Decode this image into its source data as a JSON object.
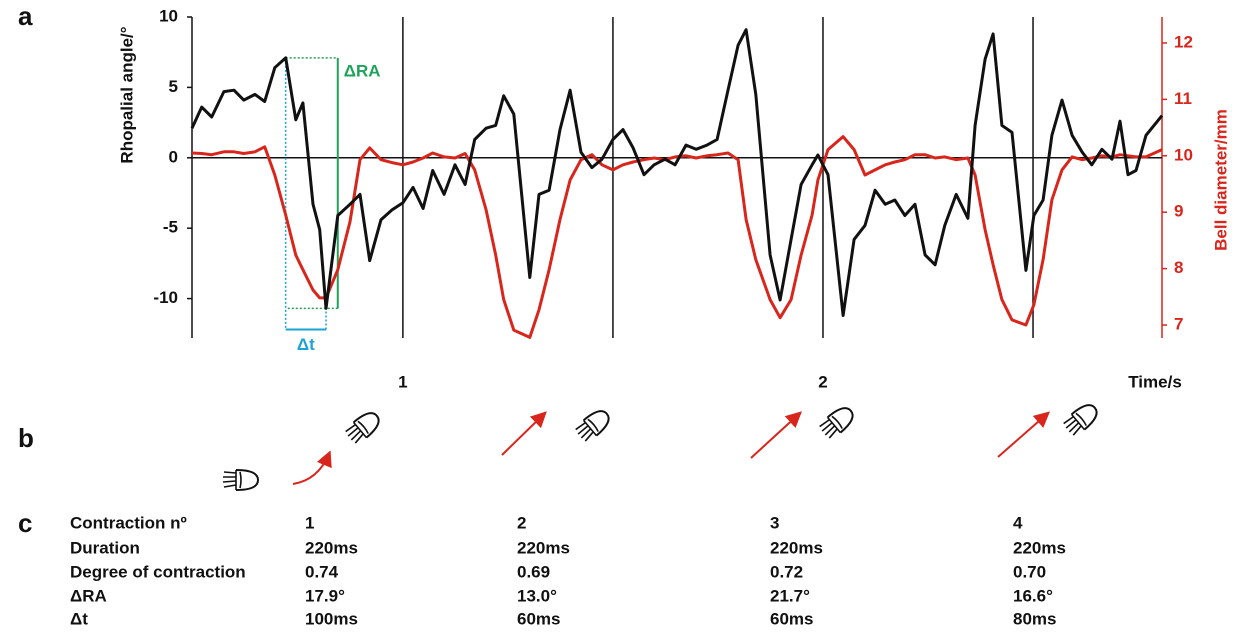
{
  "panels": [
    "a",
    "b",
    "c"
  ],
  "chart_data": {
    "type": "line",
    "ylabel": "Rhopalial angle/°",
    "y2label": "Bell diameter/mm",
    "xlabel": "Time/s",
    "xlim": [
      0.498,
      2.807
    ],
    "xticks": [
      1,
      2
    ],
    "ylim": [
      -12.8,
      10
    ],
    "yticks": [
      -10,
      -5,
      0,
      5,
      10
    ],
    "y2lim": [
      6.77,
      12.46
    ],
    "y2ticks": [
      7,
      8,
      9,
      10,
      11,
      12
    ],
    "vlines": [
      1,
      1.5,
      2,
      2.5
    ],
    "x": [
      0.498,
      0.521,
      0.545,
      0.574,
      0.598,
      0.621,
      0.648,
      0.671,
      0.695,
      0.721,
      0.745,
      0.762,
      0.786,
      0.802,
      0.817,
      0.845,
      0.874,
      0.898,
      0.921,
      0.948,
      0.974,
      1.0,
      1.024,
      1.048,
      1.071,
      1.098,
      1.124,
      1.148,
      1.171,
      1.198,
      1.221,
      1.24,
      1.264,
      1.302,
      1.324,
      1.348,
      1.374,
      1.398,
      1.424,
      1.45,
      1.474,
      1.5,
      1.524,
      1.548,
      1.574,
      1.598,
      1.624,
      1.648,
      1.674,
      1.698,
      1.724,
      1.748,
      1.774,
      1.798,
      1.817,
      1.84,
      1.874,
      1.898,
      1.924,
      1.948,
      1.974,
      1.988,
      2.012,
      2.048,
      2.074,
      2.1,
      2.124,
      2.148,
      2.171,
      2.195,
      2.219,
      2.243,
      2.267,
      2.29,
      2.317,
      2.345,
      2.362,
      2.386,
      2.405,
      2.426,
      2.45,
      2.483,
      2.502,
      2.524,
      2.545,
      2.569,
      2.593,
      2.617,
      2.64,
      2.664,
      2.688,
      2.707,
      2.726,
      2.745,
      2.769,
      2.807
    ],
    "series": [
      {
        "name": "Rhopalial angle",
        "color": "#111111",
        "values": [
          2.1,
          3.6,
          2.9,
          4.7,
          4.8,
          4.1,
          4.5,
          4.0,
          6.4,
          7.1,
          2.7,
          3.9,
          -3.3,
          -5.1,
          -10.7,
          -4.1,
          -3.3,
          -2.6,
          -7.3,
          -4.4,
          -3.7,
          -3.2,
          -2.1,
          -3.6,
          -0.9,
          -2.6,
          -0.5,
          -1.9,
          1.3,
          2.1,
          2.3,
          4.4,
          3.1,
          -8.5,
          -2.6,
          -2.3,
          2.0,
          4.8,
          0.4,
          -0.7,
          -0.1,
          1.3,
          2.0,
          0.7,
          -1.2,
          -0.5,
          -0.1,
          -0.5,
          0.9,
          0.6,
          0.9,
          1.3,
          4.8,
          8.0,
          9.1,
          4.5,
          -6.9,
          -10.1,
          -5.8,
          -1.9,
          -0.5,
          0.2,
          -1.2,
          -11.2,
          -5.8,
          -4.8,
          -2.3,
          -3.3,
          -3.0,
          -4.1,
          -3.3,
          -6.9,
          -7.6,
          -4.8,
          -2.6,
          -4.3,
          2.3,
          7.0,
          8.8,
          2.3,
          1.8,
          -8.0,
          -4.1,
          -3.0,
          1.6,
          4.1,
          1.6,
          0.4,
          -0.5,
          0.6,
          -0.1,
          2.6,
          -1.2,
          -0.9,
          1.6,
          3.0
        ]
      },
      {
        "name": "Bell diameter",
        "color": "#d9261c",
        "axis": "y2",
        "values": [
          10.05,
          10.04,
          10.02,
          10.07,
          10.07,
          10.04,
          10.07,
          10.16,
          9.66,
          8.95,
          8.24,
          7.98,
          7.62,
          7.48,
          7.48,
          7.98,
          8.83,
          9.93,
          10.14,
          9.93,
          9.88,
          9.84,
          9.89,
          9.96,
          10.05,
          9.98,
          9.96,
          10.04,
          9.75,
          9.04,
          8.24,
          7.45,
          6.91,
          6.78,
          7.27,
          7.98,
          8.87,
          9.57,
          9.93,
          10.02,
          9.84,
          9.75,
          9.84,
          9.89,
          9.93,
          9.96,
          9.93,
          9.98,
          10.0,
          9.96,
          10.0,
          10.02,
          10.05,
          9.93,
          8.87,
          8.16,
          7.45,
          7.13,
          7.45,
          8.24,
          8.95,
          9.57,
          10.11,
          10.34,
          10.11,
          9.66,
          9.75,
          9.84,
          9.89,
          9.93,
          10.02,
          10.02,
          9.96,
          9.98,
          9.93,
          9.96,
          9.66,
          8.69,
          8.07,
          7.45,
          7.09,
          7.0,
          7.36,
          8.16,
          9.22,
          9.75,
          9.98,
          9.93,
          9.96,
          10.0,
          9.98,
          10.02,
          10.0,
          9.98,
          9.98,
          10.11
        ]
      }
    ],
    "annotations": [
      {
        "text": "ΔRA",
        "color": "#1fa35a",
        "x": 0.845,
        "y": [
          7.1,
          -10.7
        ]
      },
      {
        "text": "Δt",
        "color": "#1aa3d4",
        "x": [
          0.721,
          0.817
        ],
        "y": -12.2
      }
    ]
  },
  "table": {
    "rows": [
      [
        "Contraction nº",
        "1",
        "2",
        "3",
        "4"
      ],
      [
        "Duration",
        "220ms",
        "220ms",
        "220ms",
        "220ms"
      ],
      [
        "Degree of contraction",
        "0.74",
        "0.69",
        "0.72",
        "0.70"
      ],
      [
        "ΔRA",
        "17.9°",
        "13.0°",
        "21.7°",
        "16.6°"
      ],
      [
        "Δt",
        "100ms",
        "60ms",
        "60ms",
        "80ms"
      ]
    ]
  }
}
